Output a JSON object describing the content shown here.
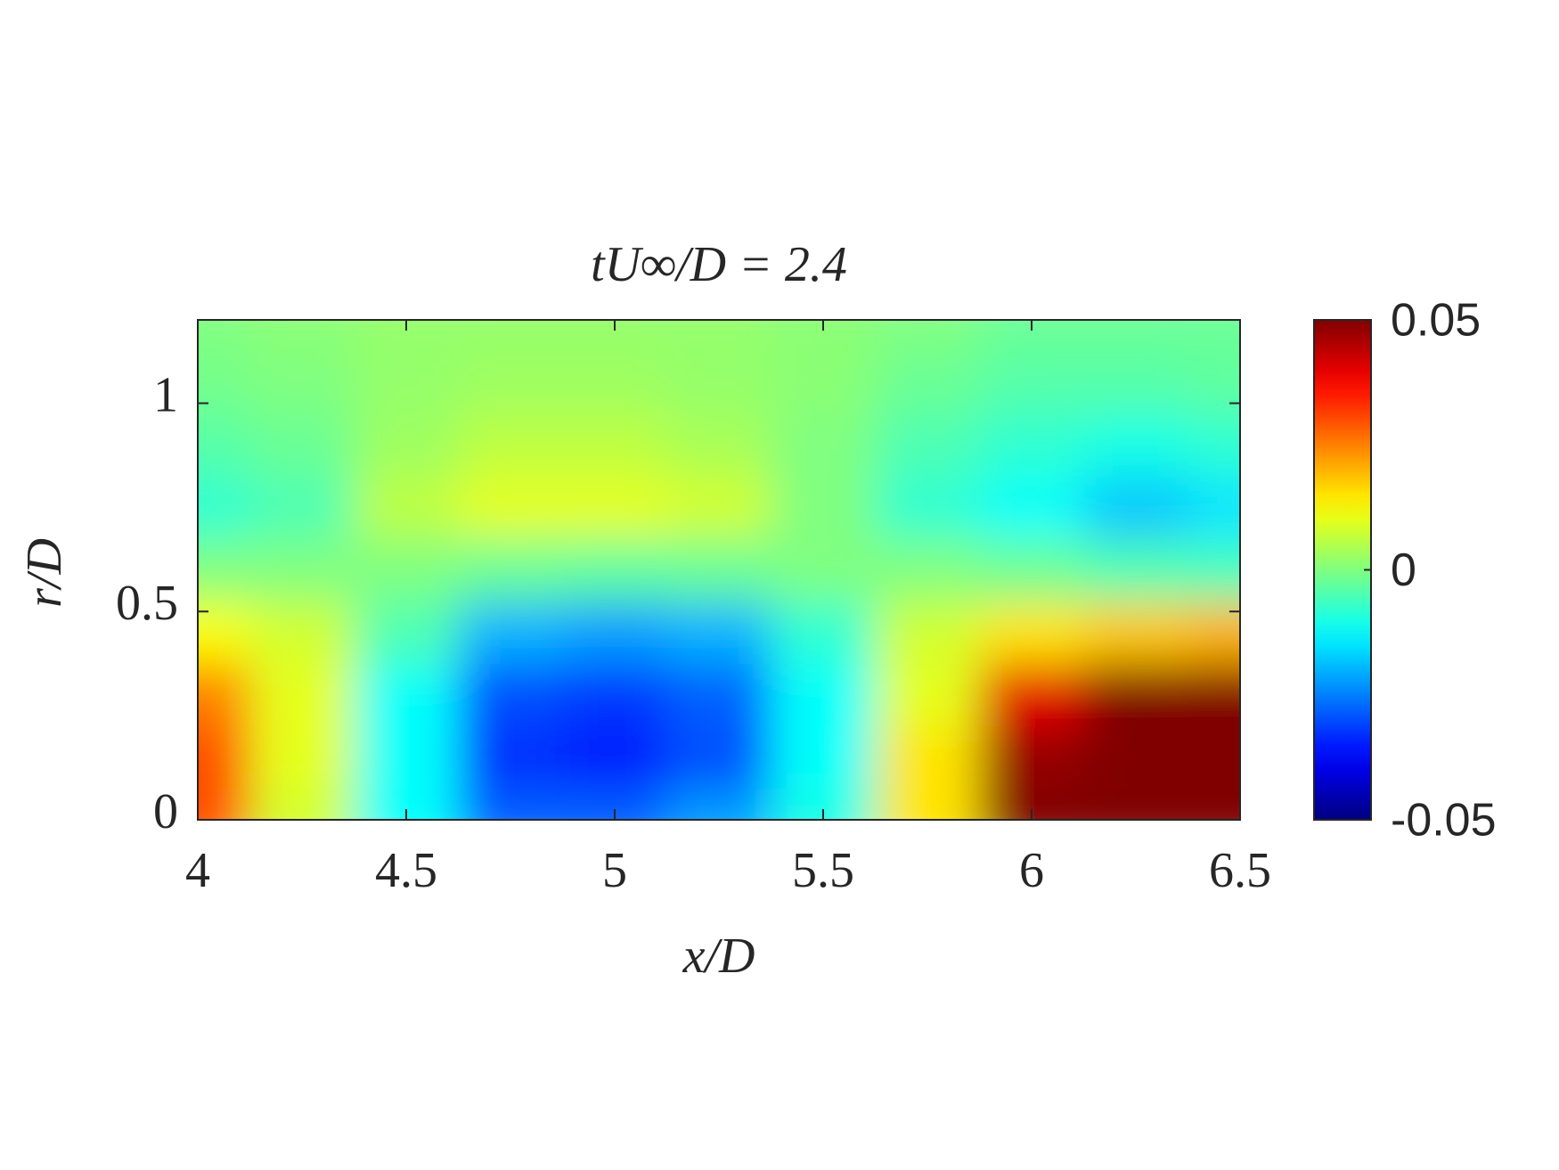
{
  "chart_data": {
    "type": "contour",
    "title": "tU∞/D = 2.4",
    "xlabel": "x/D",
    "ylabel": "r/D",
    "colormap": "jet",
    "x": [
      4,
      4.25,
      4.5,
      4.75,
      5,
      5.25,
      5.5,
      5.75,
      6,
      6.25,
      6.5
    ],
    "y": [
      0,
      0.15,
      0.3,
      0.45,
      0.6,
      0.75,
      0.9,
      1.05,
      1.2
    ],
    "z": [
      [
        0.03,
        0.008,
        -0.012,
        -0.028,
        -0.028,
        -0.022,
        -0.01,
        0.015,
        0.05,
        0.06,
        0.06
      ],
      [
        0.03,
        0.01,
        -0.012,
        -0.033,
        -0.035,
        -0.03,
        -0.012,
        0.015,
        0.048,
        0.06,
        0.06
      ],
      [
        0.025,
        0.01,
        -0.012,
        -0.03,
        -0.032,
        -0.028,
        -0.012,
        0.01,
        0.04,
        0.05,
        0.05
      ],
      [
        0.012,
        0.008,
        -0.005,
        -0.02,
        -0.022,
        -0.02,
        -0.008,
        0.008,
        0.015,
        0.018,
        0.02
      ],
      [
        0,
        0,
        0,
        -0.002,
        -0.003,
        -0.002,
        0,
        0,
        -0.002,
        -0.005,
        -0.006
      ],
      [
        -0.008,
        -0.005,
        0.006,
        0.01,
        0.01,
        0.008,
        0,
        -0.008,
        -0.012,
        -0.018,
        -0.015
      ],
      [
        -0.004,
        -0.002,
        0.003,
        0.006,
        0.006,
        0.004,
        0,
        -0.005,
        -0.008,
        -0.01,
        -0.008
      ],
      [
        -0.001,
        0,
        0.002,
        0.003,
        0.003,
        0.002,
        0.001,
        -0.002,
        -0.004,
        -0.004,
        -0.003
      ],
      [
        0,
        0.001,
        0.002,
        0.002,
        0.002,
        0.002,
        0.001,
        0,
        -0.002,
        -0.002,
        -0.002
      ]
    ],
    "xlim": [
      4,
      6.5
    ],
    "xticks": [
      4,
      4.5,
      5,
      5.5,
      6,
      6.5
    ],
    "ylim": [
      0,
      1.2
    ],
    "yticks": [
      0,
      0.5,
      1
    ],
    "clim": [
      -0.05,
      0.05
    ],
    "cticks": [
      -0.05,
      0,
      0.05
    ]
  }
}
